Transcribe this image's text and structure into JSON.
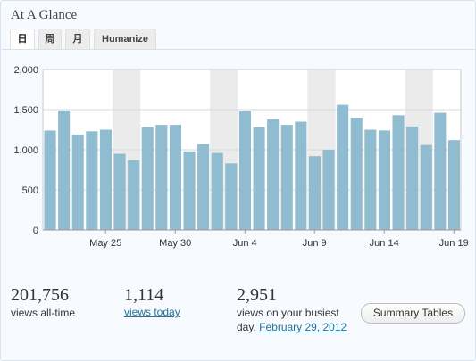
{
  "widget": {
    "title": "At A Glance"
  },
  "tabs": [
    {
      "label": "日",
      "active": true
    },
    {
      "label": "周",
      "active": false
    },
    {
      "label": "月",
      "active": false
    },
    {
      "label": "Humanize",
      "active": false
    }
  ],
  "stats": {
    "all_time": {
      "value": "201,756",
      "label": "views all-time"
    },
    "today": {
      "value": "1,114",
      "label": "views today"
    },
    "busiest": {
      "value": "2,951",
      "label": "views on your busiest",
      "label2": "day,",
      "date": "February 29, 2012"
    }
  },
  "buttons": {
    "summary_tables": "Summary Tables"
  },
  "colors": {
    "bar": "#8fbcd0",
    "weekend": "#ebebeb",
    "link": "#21759b"
  },
  "chart_data": {
    "type": "bar",
    "ylim": [
      0,
      2000
    ],
    "yticks": [
      "0",
      "500",
      "1,000",
      "1,500",
      "2,000"
    ],
    "xtick_labels": [
      {
        "index": 4,
        "label": "May 25"
      },
      {
        "index": 9,
        "label": "May 30"
      },
      {
        "index": 14,
        "label": "Jun 4"
      },
      {
        "index": 19,
        "label": "Jun 9"
      },
      {
        "index": 24,
        "label": "Jun 14"
      },
      {
        "index": 29,
        "label": "Jun 19"
      }
    ],
    "weekend_groups": [
      [
        5,
        6
      ],
      [
        12,
        13
      ],
      [
        19,
        20
      ],
      [
        26,
        27
      ]
    ],
    "values": [
      1240,
      1490,
      1190,
      1230,
      1250,
      950,
      870,
      1280,
      1310,
      1310,
      980,
      1070,
      960,
      830,
      1480,
      1280,
      1380,
      1310,
      1350,
      920,
      1000,
      1560,
      1400,
      1250,
      1240,
      1430,
      1290,
      1060,
      1460,
      1120
    ],
    "grid": true,
    "title": "",
    "xlabel": "",
    "ylabel": ""
  }
}
